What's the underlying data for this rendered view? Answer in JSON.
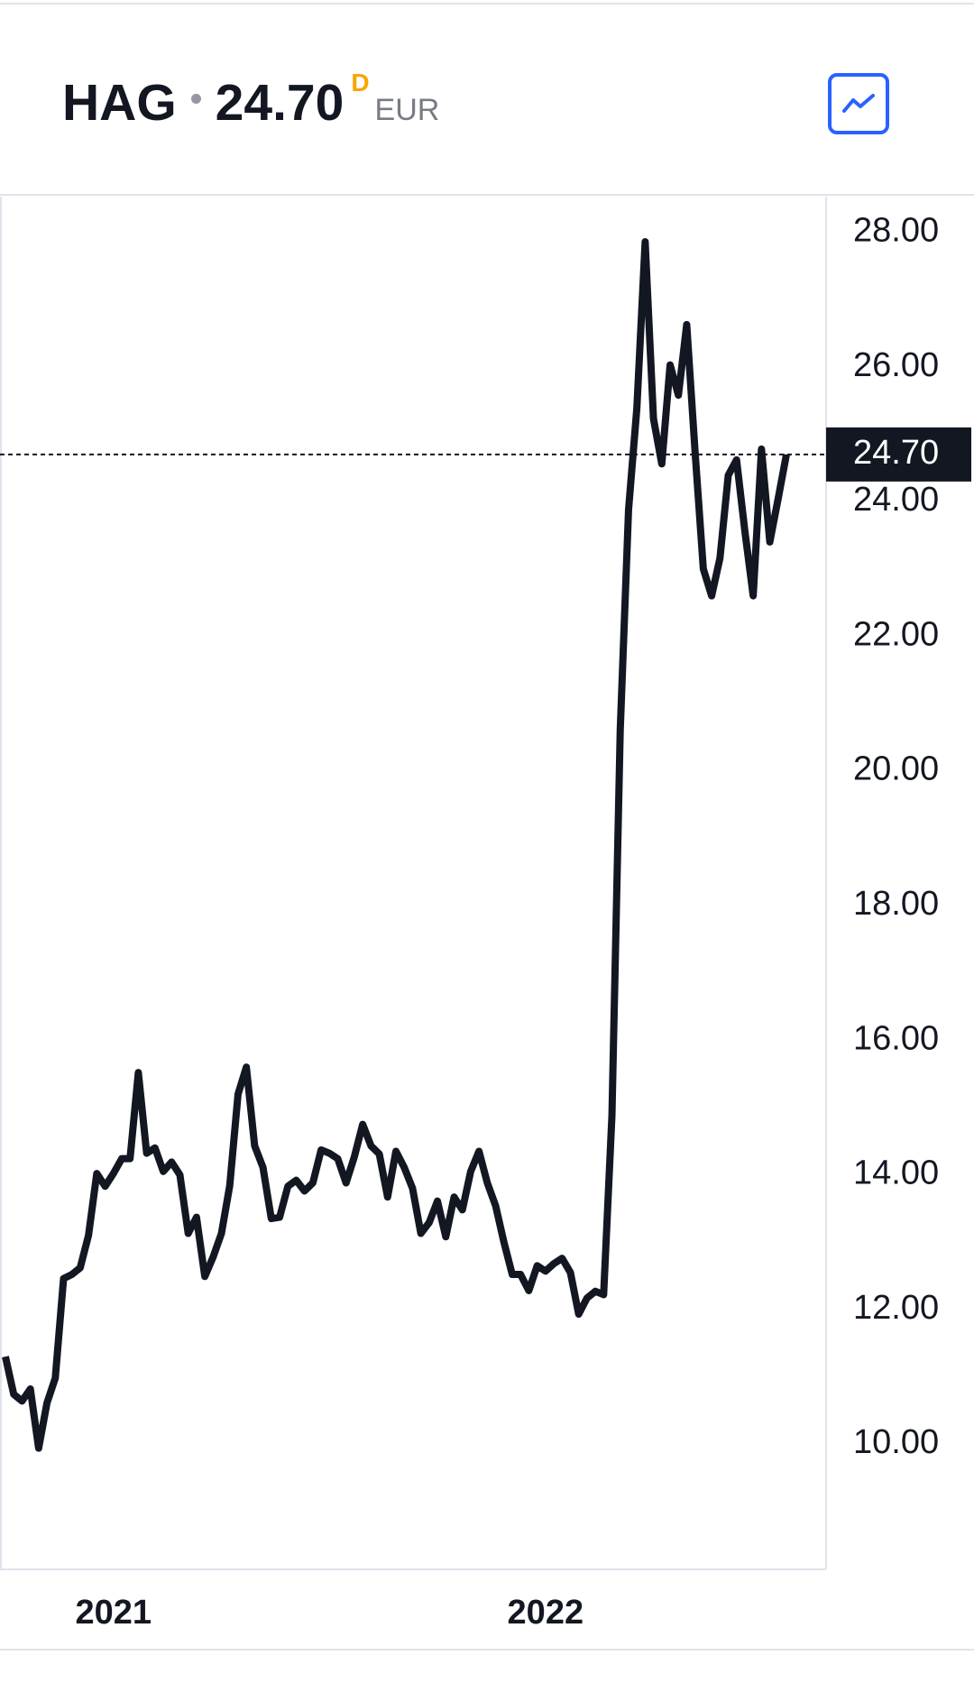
{
  "chart_data": {
    "type": "line",
    "symbol": "HAG",
    "price_label": "24.70",
    "flag": "D",
    "currency": "EUR",
    "current": {
      "value": 24.7,
      "label": "24.70"
    },
    "categories": [
      null,
      null,
      null,
      null,
      null,
      null,
      null,
      null,
      null,
      null,
      null,
      null,
      null,
      "2021",
      null,
      null,
      null,
      null,
      null,
      null,
      null,
      null,
      null,
      null,
      null,
      null,
      null,
      null,
      null,
      null,
      null,
      null,
      null,
      null,
      null,
      null,
      null,
      null,
      null,
      null,
      null,
      null,
      null,
      null,
      null,
      null,
      null,
      null,
      null,
      null,
      null,
      null,
      null,
      null,
      null,
      null,
      null,
      null,
      null,
      null,
      null,
      null,
      null,
      null,
      null,
      "2022",
      null,
      null,
      null,
      null,
      null,
      null,
      null,
      null,
      null,
      null,
      null,
      null,
      null,
      null,
      null,
      null,
      null,
      null,
      null,
      null,
      null,
      null,
      null,
      null,
      null,
      null,
      null,
      null,
      null
    ],
    "series": [
      {
        "color": "#131722",
        "values": [
          11.3,
          10.74,
          10.64,
          10.82,
          9.94,
          10.61,
          10.98,
          12.46,
          12.52,
          12.62,
          13.1,
          14.02,
          13.83,
          14.02,
          14.24,
          14.24,
          15.52,
          14.32,
          14.4,
          14.05,
          14.19,
          14.0,
          13.13,
          13.37,
          12.49,
          12.78,
          13.13,
          13.84,
          15.2,
          15.6,
          14.43,
          14.11,
          13.35,
          13.37,
          13.83,
          13.92,
          13.76,
          13.88,
          14.37,
          14.32,
          14.24,
          13.88,
          14.27,
          14.75,
          14.43,
          14.31,
          13.67,
          14.35,
          14.11,
          13.8,
          13.13,
          13.29,
          13.61,
          13.08,
          13.67,
          13.48,
          14.05,
          14.35,
          13.88,
          13.54,
          13.0,
          12.52,
          12.52,
          12.28,
          12.65,
          12.57,
          12.68,
          12.76,
          12.55,
          11.93,
          12.17,
          12.27,
          12.22,
          14.88,
          20.61,
          23.88,
          25.39,
          27.86,
          25.23,
          24.56,
          26.03,
          25.58,
          26.63,
          24.75,
          23.0,
          22.6,
          23.16,
          24.39,
          24.62,
          23.56,
          22.6,
          24.78,
          23.4,
          24.04,
          24.7
        ]
      }
    ],
    "ylim": [
      8.14,
      28.53
    ],
    "yticks": [
      {
        "value": 10,
        "label": "10.00"
      },
      {
        "value": 12,
        "label": "12.00"
      },
      {
        "value": 14,
        "label": "14.00"
      },
      {
        "value": 16,
        "label": "16.00"
      },
      {
        "value": 18,
        "label": "18.00"
      },
      {
        "value": 20,
        "label": "20.00"
      },
      {
        "value": 22,
        "label": "22.00"
      },
      {
        "value": 24,
        "label": "24.00"
      },
      {
        "value": 26,
        "label": "26.00"
      },
      {
        "value": 28,
        "label": "28.00"
      }
    ]
  }
}
